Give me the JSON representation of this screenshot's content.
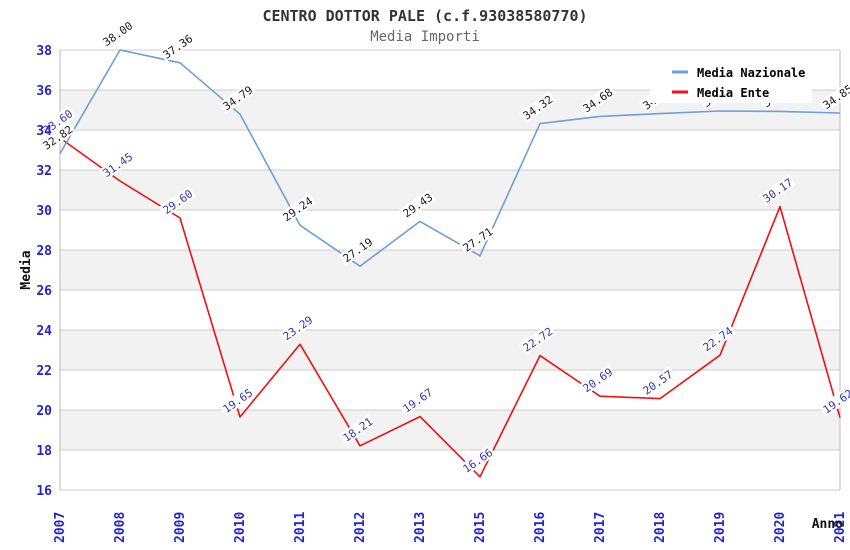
{
  "chart_data": {
    "type": "line",
    "title": "CENTRO DOTTOR PALE (c.f.93038580770)",
    "subtitle": "Media Importi",
    "xlabel": "Anno",
    "ylabel": "Media",
    "categories": [
      "2007",
      "2008",
      "2009",
      "2010",
      "2011",
      "2012",
      "2013",
      "2015",
      "2016",
      "2017",
      "2018",
      "2019",
      "2020",
      "2021"
    ],
    "ylim": [
      16,
      38
    ],
    "ytick_step": 2,
    "grid": "horizontal gridlines at even values with alternating light-gray bands",
    "legend_position": "top-right",
    "colors": {
      "axis_tick": "#2424CC",
      "gridline": "#CCCCCC",
      "band": "#F2F2F2",
      "plot_border": "#BBBBBB",
      "background": "#FFFFFF"
    },
    "series": [
      {
        "name": "Media Nazionale",
        "color": "#6B9FDD",
        "label_color": "#1A1A1A",
        "values": [
          32.82,
          38.0,
          37.36,
          34.79,
          29.24,
          27.19,
          29.43,
          27.71,
          34.32,
          34.68,
          34.82,
          34.95,
          34.93,
          34.85
        ],
        "labels": [
          "32.82",
          "38.00",
          "37.36",
          "34.79",
          "29.24",
          "27.19",
          "29.43",
          "27.71",
          "34.32",
          "34.68",
          "34.82",
          "34.95",
          "34.93",
          "34.85"
        ],
        "labels_hidden_by_legend": [
          "2019",
          "2020"
        ]
      },
      {
        "name": "Media Ente",
        "color": "#EE1111",
        "label_color": "#3535B0",
        "values": [
          33.6,
          31.45,
          29.6,
          19.65,
          23.29,
          18.21,
          19.67,
          16.66,
          22.72,
          20.69,
          20.57,
          22.74,
          30.17,
          19.62
        ],
        "labels": [
          "33.60",
          "31.45",
          "29.60",
          "19.65",
          "23.29",
          "18.21",
          "19.67",
          "16.66",
          "22.72",
          "20.69",
          "20.57",
          "22.74",
          "30.17",
          "19.62"
        ],
        "labels_hidden_by_legend": []
      }
    ]
  }
}
